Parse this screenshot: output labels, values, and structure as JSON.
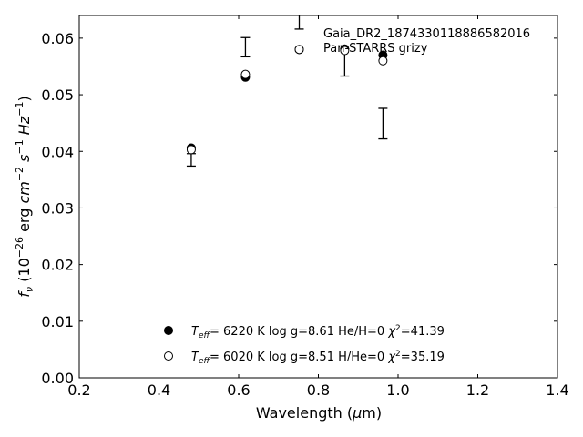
{
  "chart_data": {
    "type": "scatter",
    "title": "",
    "xlabel": "Wavelength (μm)",
    "ylabel": "fν (10⁻²⁶ erg cm⁻² s⁻¹ Hz⁻¹)",
    "xlim": [
      0.2,
      1.4
    ],
    "ylim": [
      0.0,
      0.064
    ],
    "xticks": [
      0.2,
      0.4,
      0.6,
      0.8,
      1.0,
      1.2,
      1.4
    ],
    "xtick_labels": [
      "0.2",
      "0.4",
      "0.6",
      "0.8",
      "1.0",
      "1.2",
      "1.4"
    ],
    "yticks": [
      0.0,
      0.01,
      0.02,
      0.03,
      0.04,
      0.05,
      0.06
    ],
    "ytick_labels": [
      "0.00",
      "0.01",
      "0.02",
      "0.03",
      "0.04",
      "0.05",
      "0.06"
    ],
    "grid": false,
    "object_label": "Gaia_DR2_1874330118886582016",
    "photometry_label": "Pan-STARRS grizy",
    "errorbars": [
      {
        "x": 0.481,
        "y": 0.0385,
        "err": 0.0011
      },
      {
        "x": 0.617,
        "y": 0.0584,
        "err": 0.0017
      },
      {
        "x": 0.752,
        "y": 0.064,
        "err": 0.0024
      },
      {
        "x": 0.866,
        "y": 0.0557,
        "err": 0.0024
      },
      {
        "x": 0.962,
        "y": 0.0449,
        "err": 0.0027
      }
    ],
    "series": [
      {
        "name": "T_eff= 6220 K log g=8.61 He/H=0 χ²=41.39",
        "marker": "filled",
        "x": [
          0.481,
          0.617,
          0.752,
          0.866,
          0.962
        ],
        "y": [
          0.0406,
          0.0531,
          0.058,
          0.0581,
          0.057
        ]
      },
      {
        "name": "T_eff= 6020 K log g=8.51 H/He=0 χ²=35.19",
        "marker": "open",
        "x": [
          0.481,
          0.617,
          0.752,
          0.866,
          0.962
        ],
        "y": [
          0.0403,
          0.0536,
          0.058,
          0.0578,
          0.056
        ]
      }
    ],
    "legend_entries": [
      {
        "teff": "6220 K",
        "logg": "log g=8.61",
        "comp": "He/H=0",
        "chi2": "=41.39"
      },
      {
        "teff": "6020 K",
        "logg": "log g=8.51",
        "comp": "H/He=0",
        "chi2": "=35.19"
      }
    ],
    "legend_placement": "lower-center"
  }
}
